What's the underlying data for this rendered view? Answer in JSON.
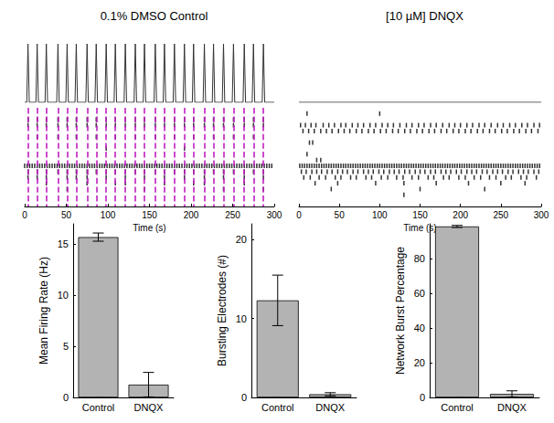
{
  "chart_data": [
    {
      "type": "raster",
      "title": "0.1% DMSO Control",
      "x_label": "Time (s)",
      "xlim": [
        0,
        300
      ],
      "xticks": [
        0,
        50,
        100,
        150,
        200,
        250,
        300
      ],
      "ylim": [
        0,
        17
      ],
      "tick_labels": "x",
      "grid": false,
      "color": "#000000",
      "trace_ylim": [
        0,
        1
      ],
      "burst_times": [
        4,
        15,
        26,
        40,
        51,
        62,
        75,
        86,
        98,
        109,
        121,
        133,
        144,
        157,
        168,
        180,
        192,
        203,
        216,
        227,
        239,
        251,
        264,
        275,
        287
      ],
      "burst_heights": [
        1,
        1,
        1,
        1,
        1,
        1,
        1,
        1,
        1,
        1,
        1,
        1,
        1,
        1,
        1,
        1,
        1,
        1,
        1,
        1,
        1,
        1,
        1,
        1,
        1
      ],
      "rows": [
        {
          "row": 2,
          "spikes": [
            4,
            15,
            26,
            40,
            51,
            62,
            75,
            86,
            98,
            109,
            121,
            133,
            144,
            157,
            168,
            180,
            192,
            203,
            216,
            227,
            239,
            251,
            264,
            275,
            287
          ]
        },
        {
          "row": 3,
          "spikes": [
            4,
            15,
            26,
            40,
            51,
            62,
            75,
            86,
            98,
            109,
            121,
            133,
            144,
            157,
            168,
            180,
            192,
            203,
            216,
            227,
            239,
            251,
            264,
            275,
            287
          ]
        },
        {
          "row": 5,
          "spikes": [
            15,
            40,
            62,
            86,
            109,
            133,
            157,
            180,
            203,
            227,
            251,
            275
          ]
        },
        {
          "row": 7,
          "spikes": [
            98,
            192
          ]
        },
        {
          "row": 10,
          "spikes": [
            0,
            3,
            6,
            9,
            12,
            15,
            18,
            21,
            24,
            27,
            30,
            33,
            36,
            39,
            42,
            45,
            48,
            51,
            54,
            57,
            60,
            63,
            66,
            69,
            72,
            75,
            78,
            81,
            84,
            87,
            90,
            93,
            96,
            99,
            102,
            105,
            108,
            111,
            114,
            117,
            120,
            123,
            126,
            129,
            132,
            135,
            138,
            141,
            144,
            147,
            150,
            153,
            156,
            159,
            162,
            165,
            168,
            171,
            174,
            177,
            180,
            183,
            186,
            189,
            192,
            195,
            198,
            201,
            204,
            207,
            210,
            213,
            216,
            219,
            222,
            225,
            228,
            231,
            234,
            237,
            240,
            243,
            246,
            249,
            252,
            255,
            258,
            261,
            264,
            267,
            270,
            273,
            276,
            279,
            282,
            285,
            288,
            291,
            294,
            297
          ]
        },
        {
          "row": 11,
          "spikes": [
            4,
            15,
            26,
            40,
            51,
            62,
            75,
            86,
            98,
            109,
            121,
            133,
            144,
            157,
            168,
            180,
            192,
            203,
            216,
            227,
            239,
            251,
            264,
            275,
            287
          ]
        },
        {
          "row": 12,
          "spikes": [
            4,
            15,
            26,
            51,
            62,
            75,
            98,
            121,
            144,
            168,
            192,
            216,
            239,
            264,
            287
          ]
        },
        {
          "row": 13,
          "spikes": [
            26,
            75,
            109,
            121,
            168,
            203,
            216,
            264
          ]
        },
        {
          "row": 14,
          "spikes": [
            51,
            144,
            239,
            287
          ]
        }
      ]
    },
    {
      "type": "raster",
      "title": "[10 µM] DNQX",
      "x_label": "Time (s)",
      "xlim": [
        0,
        300
      ],
      "xticks": [
        0,
        50,
        100,
        150,
        200,
        250,
        300
      ],
      "ylim": [
        0,
        17
      ],
      "tick_labels": "x",
      "grid": false,
      "color": "#000000",
      "trace_ylim": [
        0,
        1
      ],
      "burst_times": [],
      "burst_heights": [],
      "rows": [
        {
          "row": 1,
          "spikes": [
            10,
            100
          ]
        },
        {
          "row": 3,
          "spikes": [
            2,
            8,
            15,
            21,
            30,
            37,
            44,
            52,
            58,
            66,
            73,
            80,
            88,
            95,
            103,
            110,
            117,
            125,
            133,
            140,
            148,
            155,
            163,
            170,
            178,
            186,
            193,
            200,
            208,
            215,
            223,
            230,
            238,
            246,
            253,
            261,
            268,
            276,
            283,
            291,
            298
          ]
        },
        {
          "row": 4,
          "spikes": [
            5,
            12,
            19,
            27,
            34,
            41,
            49,
            56,
            63,
            71,
            78,
            86,
            93,
            101,
            108,
            116,
            123,
            131,
            138,
            146,
            153,
            161,
            168,
            176,
            183,
            191,
            198,
            206,
            213,
            221,
            228,
            236,
            243,
            251,
            258,
            266,
            273,
            281,
            288,
            296
          ]
        },
        {
          "row": 6,
          "spikes": [
            13,
            17
          ]
        },
        {
          "row": 8,
          "spikes": [
            10
          ]
        },
        {
          "row": 9,
          "spikes": [
            22,
            27
          ]
        },
        {
          "row": 10,
          "spikes": [
            1,
            4,
            7,
            10,
            13,
            16,
            19,
            22,
            25,
            28,
            31,
            34,
            37,
            40,
            43,
            46,
            49,
            52,
            55,
            58,
            61,
            64,
            67,
            70,
            73,
            76,
            79,
            82,
            85,
            88,
            91,
            94,
            97,
            100,
            103,
            106,
            109,
            112,
            115,
            118,
            121,
            124,
            127,
            130,
            133,
            136,
            139,
            142,
            145,
            148,
            151,
            154,
            157,
            160,
            163,
            166,
            169,
            172,
            175,
            178,
            181,
            184,
            187,
            190,
            193,
            196,
            199,
            202,
            205,
            208,
            211,
            214,
            217,
            220,
            223,
            226,
            229,
            232,
            235,
            238,
            241,
            244,
            247,
            250,
            253,
            256,
            259,
            262,
            265,
            268,
            271,
            274,
            277,
            280,
            283,
            286,
            289,
            292,
            295,
            298
          ]
        },
        {
          "row": 11,
          "spikes": [
            3,
            9,
            16,
            22,
            28,
            35,
            41,
            48,
            54,
            60,
            67,
            73,
            80,
            86,
            92,
            99,
            105,
            112,
            118,
            124,
            131,
            137,
            144,
            150,
            156,
            163,
            169,
            176,
            182,
            188,
            195,
            201,
            208,
            214,
            220,
            227,
            233,
            240,
            246,
            252,
            259,
            265,
            272,
            278,
            284,
            291,
            297
          ]
        },
        {
          "row": 12,
          "spikes": [
            6,
            14,
            25,
            33,
            45,
            52,
            64,
            71,
            83,
            90,
            102,
            110,
            121,
            129,
            140,
            148,
            160,
            167,
            179,
            186,
            198,
            206,
            217,
            225,
            236,
            244,
            256,
            263,
            275,
            282,
            294
          ]
        },
        {
          "row": 13,
          "spikes": [
            20,
            48,
            95,
            130,
            170,
            210,
            250,
            280
          ]
        },
        {
          "row": 14,
          "spikes": [
            40,
            150,
            230
          ]
        },
        {
          "row": 15,
          "spikes": [
            130
          ]
        }
      ]
    },
    {
      "type": "bar",
      "y_label": "Mean Firing Rate (Hz)",
      "categories": [
        "Control",
        "DNQX"
      ],
      "values": [
        15.7,
        1.25
      ],
      "errors": [
        0.4,
        1.2
      ],
      "color": "#b3b3b3",
      "ylim": [
        0,
        17
      ],
      "yticks": [
        0,
        5,
        10,
        15
      ],
      "grid": false
    },
    {
      "type": "bar",
      "y_label": "Bursting Electrodes (#)",
      "categories": [
        "Control",
        "DNQX"
      ],
      "values": [
        12.3,
        0.4
      ],
      "errors": [
        3.2,
        0.2
      ],
      "color": "#b3b3b3",
      "ylim": [
        0,
        22
      ],
      "yticks": [
        0,
        10,
        20
      ],
      "grid": false
    },
    {
      "type": "bar",
      "y_label": "Network Burst Percentage",
      "categories": [
        "Control",
        "DNQX"
      ],
      "values": [
        98.5,
        2.0
      ],
      "errors": [
        0.6,
        1.8
      ],
      "color": "#b3b3b3",
      "ylim": [
        0,
        100
      ],
      "yticks": [
        0,
        20,
        40,
        60,
        80
      ],
      "grid": false
    }
  ]
}
